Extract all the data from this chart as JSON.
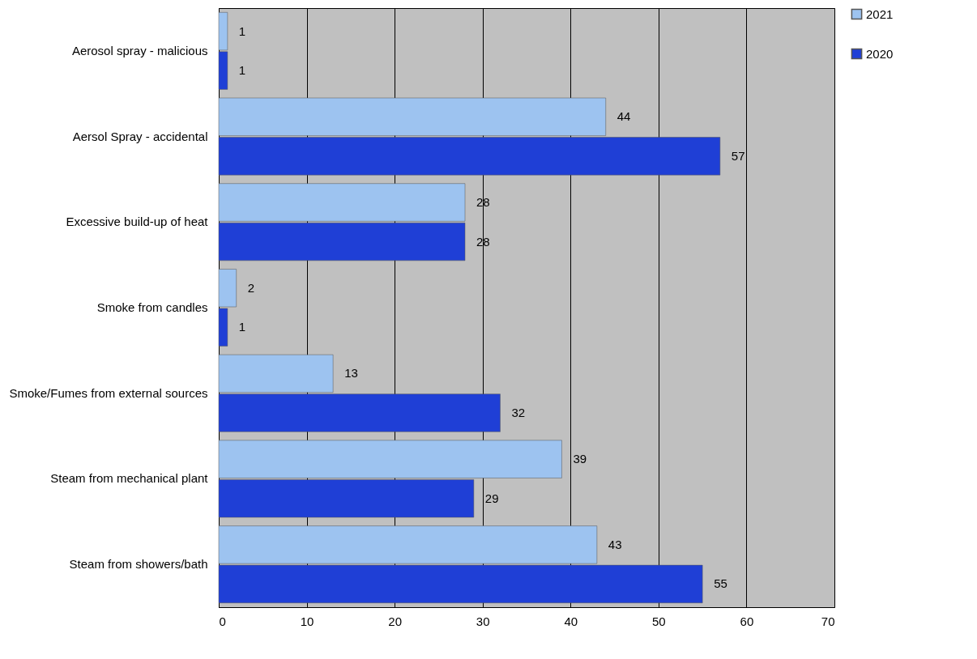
{
  "chart_data": {
    "type": "bar",
    "orientation": "horizontal",
    "categories": [
      "Aerosol spray - malicious",
      "Aersol Spray - accidental",
      "Excessive build-up of heat",
      "Smoke from candles",
      "Smoke/Fumes from external sources",
      "Steam from mechanical plant",
      "Steam from showers/bath"
    ],
    "series": [
      {
        "name": "2021",
        "color": "#9dc3f0",
        "values": [
          1,
          44,
          28,
          2,
          13,
          39,
          43
        ]
      },
      {
        "name": "2020",
        "color": "#1f3fd6",
        "values": [
          1,
          57,
          28,
          1,
          32,
          29,
          55
        ]
      }
    ],
    "xlim": [
      0,
      70
    ],
    "xticks": [
      0,
      10,
      20,
      30,
      40,
      50,
      60,
      70
    ],
    "grid": "x",
    "legend": "right",
    "data_labels": true
  }
}
